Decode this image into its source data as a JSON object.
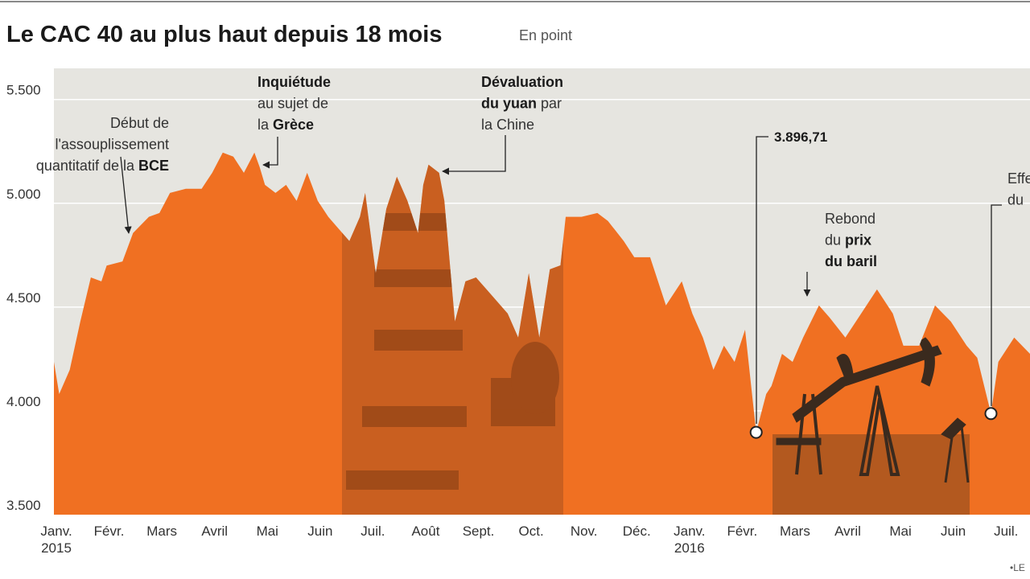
{
  "chart_data": {
    "type": "area",
    "title": "Le CAC 40 au plus haut depuis 18 mois",
    "subtitle": "En point",
    "source": "•LE",
    "color": "#f07022",
    "background": "#e6e5e0",
    "grid": true,
    "ylim": [
      3500,
      5650
    ],
    "yticks": [
      {
        "value": 3500,
        "label": "3.500"
      },
      {
        "value": 4000,
        "label": "4.000"
      },
      {
        "value": 4500,
        "label": "4.500"
      },
      {
        "value": 5000,
        "label": "5.000"
      },
      {
        "value": 5500,
        "label": "5.500"
      }
    ],
    "xlim": [
      0,
      18.5
    ],
    "xticks": [
      {
        "value": 0,
        "label": "Janv."
      },
      {
        "value": 1,
        "label": "Févr."
      },
      {
        "value": 2,
        "label": "Mars"
      },
      {
        "value": 3,
        "label": "Avril"
      },
      {
        "value": 4,
        "label": "Mai"
      },
      {
        "value": 5,
        "label": "Juin"
      },
      {
        "value": 6,
        "label": "Juil."
      },
      {
        "value": 7,
        "label": "Août"
      },
      {
        "value": 8,
        "label": "Sept."
      },
      {
        "value": 9,
        "label": "Oct."
      },
      {
        "value": 10,
        "label": "Nov."
      },
      {
        "value": 11,
        "label": "Déc."
      },
      {
        "value": 12,
        "label": "Janv."
      },
      {
        "value": 13,
        "label": "Févr."
      },
      {
        "value": 14,
        "label": "Mars"
      },
      {
        "value": 15,
        "label": "Avril"
      },
      {
        "value": 16,
        "label": "Mai"
      },
      {
        "value": 17,
        "label": "Juin"
      },
      {
        "value": 18,
        "label": "Juil."
      }
    ],
    "year_labels": [
      {
        "value": 0,
        "label": "2015"
      },
      {
        "value": 12,
        "label": "2016"
      }
    ],
    "series": [
      {
        "x": [
          0,
          0.1,
          0.3,
          0.5,
          0.7,
          0.9,
          1.0,
          1.3,
          1.5,
          1.8,
          2.0,
          2.2,
          2.5,
          2.8,
          3.0,
          3.2,
          3.4,
          3.6,
          3.8,
          3.9,
          4.0,
          4.2,
          4.4,
          4.6,
          4.8,
          5.0,
          5.2,
          5.4,
          5.6,
          5.8,
          5.9,
          6.0,
          6.1,
          6.3,
          6.5,
          6.7,
          6.9,
          7.0,
          7.1,
          7.3,
          7.4,
          7.6,
          7.8,
          8.0,
          8.2,
          8.4,
          8.6,
          8.8,
          9.0,
          9.2,
          9.4,
          9.6,
          9.7,
          10.0,
          10.3,
          10.5,
          10.8,
          11.0,
          11.3,
          11.6,
          11.9,
          12.1,
          12.3,
          12.5,
          12.7,
          12.9,
          13.1,
          13.31,
          13.5,
          13.6,
          13.8,
          14.0,
          14.2,
          14.5,
          14.7,
          15.0,
          15.3,
          15.6,
          15.9,
          16.1,
          16.4,
          16.7,
          17.0,
          17.3,
          17.5,
          17.76,
          17.9,
          18.2,
          18.5
        ],
        "values": [
          4236,
          4081,
          4198,
          4430,
          4643,
          4624,
          4700,
          4720,
          4857,
          4935,
          4953,
          5050,
          5070,
          5070,
          5147,
          5244,
          5225,
          5147,
          5244,
          5174,
          5089,
          5050,
          5089,
          5012,
          5147,
          5012,
          4935,
          4876,
          4818,
          4935,
          5050,
          4857,
          4663,
          4973,
          5128,
          5012,
          4857,
          5089,
          5186,
          5147,
          5012,
          4430,
          4624,
          4643,
          4585,
          4527,
          4469,
          4353,
          4663,
          4353,
          4682,
          4701,
          4935,
          4935,
          4953,
          4915,
          4818,
          4740,
          4740,
          4508,
          4624,
          4469,
          4353,
          4198,
          4314,
          4236,
          4391,
          3896.71,
          4081,
          4120,
          4275,
          4236,
          4353,
          4508,
          4450,
          4353,
          4469,
          4585,
          4469,
          4314,
          4314,
          4508,
          4430,
          4314,
          4256,
          3987,
          4236,
          4353,
          4275
        ]
      }
    ],
    "points": [
      {
        "x": 13.31,
        "value": 3896.71,
        "label": "3.896,71"
      },
      {
        "x": 17.76,
        "value": 3987
      }
    ],
    "annotations": [
      {
        "lines": [
          [
            {
              "text": "Début de"
            }
          ],
          [
            {
              "text": "l'assouplissement"
            }
          ],
          [
            {
              "text": "quantitatif de la "
            },
            {
              "text": "BCE",
              "bold": true
            }
          ]
        ]
      },
      {
        "lines": [
          [
            {
              "text": "Inquiétude",
              "bold": true
            }
          ],
          [
            {
              "text": "au sujet de"
            }
          ],
          [
            {
              "text": "la "
            },
            {
              "text": "Grèce",
              "bold": true
            }
          ]
        ]
      },
      {
        "lines": [
          [
            {
              "text": "Dévaluation",
              "bold": true
            }
          ],
          [
            {
              "text": "du yuan",
              "bold": true
            },
            {
              "text": " par"
            }
          ],
          [
            {
              "text": "la Chine"
            }
          ]
        ]
      },
      {
        "lines": [
          [
            {
              "text": "Rebond"
            }
          ],
          [
            {
              "text": "du "
            },
            {
              "text": "prix",
              "bold": true
            }
          ],
          [
            {
              "text": "du baril",
              "bold": true
            }
          ]
        ]
      },
      {
        "lines": [
          [
            {
              "text": "Effe"
            }
          ],
          [
            {
              "text": "du"
            }
          ]
        ]
      }
    ]
  }
}
